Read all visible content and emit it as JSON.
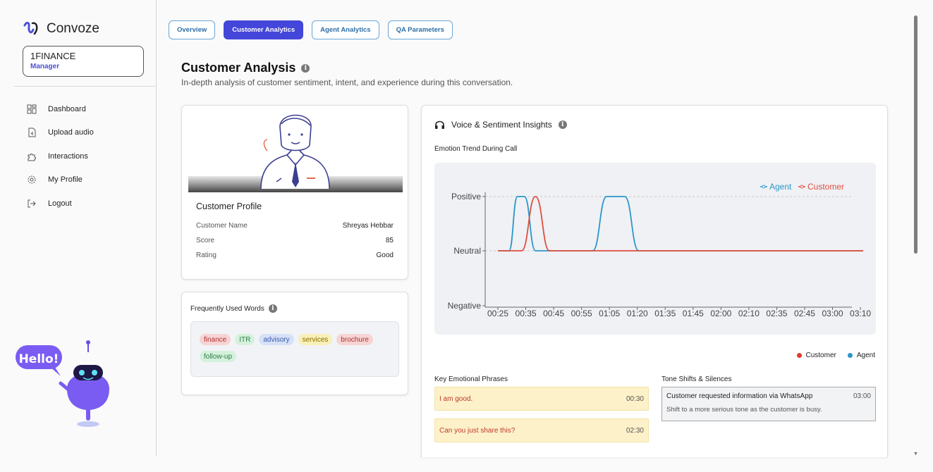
{
  "brand": {
    "name": "Convoze",
    "color": "#4c52d6"
  },
  "org": {
    "name": "1FINANCE",
    "role": "Manager"
  },
  "nav": [
    {
      "label": "Dashboard",
      "icon": "dashboard-icon"
    },
    {
      "label": "Upload audio",
      "icon": "upload-file-icon"
    },
    {
      "label": "Interactions",
      "icon": "puzzle-icon"
    },
    {
      "label": "My Profile",
      "icon": "gear-icon"
    },
    {
      "label": "Logout",
      "icon": "logout-icon"
    }
  ],
  "bot": {
    "greeting": "Hello!"
  },
  "tabs": [
    {
      "label": "Overview",
      "active": false
    },
    {
      "label": "Customer Analytics",
      "active": true
    },
    {
      "label": "Agent Analytics",
      "active": false
    },
    {
      "label": "QA Parameters",
      "active": false
    }
  ],
  "page": {
    "title": "Customer Analysis",
    "subtitle": "In-depth analysis of customer sentiment, intent, and experience during this conversation."
  },
  "profile": {
    "title": "Customer Profile",
    "rows": [
      {
        "label": "Customer Name",
        "value": "Shreyas Hebbar"
      },
      {
        "label": "Score",
        "value": "85"
      },
      {
        "label": "Rating",
        "value": "Good"
      }
    ]
  },
  "words": {
    "title": "Frequently Used Words",
    "chips": [
      {
        "text": "finance",
        "bg": "#f7d4d4",
        "fg": "#b03030"
      },
      {
        "text": "ITR",
        "bg": "#d4f1dc",
        "fg": "#2f7d46"
      },
      {
        "text": "advisory",
        "bg": "#d6e0f7",
        "fg": "#3a5ba8"
      },
      {
        "text": "services",
        "bg": "#f8f0b8",
        "fg": "#8a6d00"
      },
      {
        "text": "brochure",
        "bg": "#f7d4d4",
        "fg": "#b03030"
      },
      {
        "text": "follow-up",
        "bg": "#d4f1dc",
        "fg": "#2f7d46"
      }
    ]
  },
  "voice": {
    "title": "Voice & Sentiment Insights",
    "emotion_label": "Emotion Trend During Call",
    "legend_bottom": [
      "Customer",
      "Agent"
    ],
    "key_phrases_title": "Key Emotional Phrases",
    "phrases": [
      {
        "text": "I am good.",
        "time": "00:30"
      },
      {
        "text": "Can you just share this?",
        "time": "02:30"
      }
    ],
    "tone_title": "Tone Shifts & Silences",
    "tone": {
      "text": "Customer requested information via WhatsApp",
      "time": "03:00",
      "desc": "Shift to a more serious tone as the customer is busy."
    }
  },
  "chart_data": {
    "type": "line",
    "title": "",
    "x": [
      "00:25",
      "00:35",
      "00:45",
      "00:55",
      "01:05",
      "01:20",
      "01:35",
      "01:45",
      "02:00",
      "02:10",
      "02:35",
      "02:45",
      "03:00",
      "03:10"
    ],
    "y_categories": [
      "Negative",
      "Neutral",
      "Positive"
    ],
    "ylim": [
      -1,
      1
    ],
    "grid": "dashed horizontal",
    "legend": "top-right",
    "series": [
      {
        "name": "Agent",
        "color": "#2a97c9",
        "points": [
          [
            0,
            0
          ],
          [
            0.4,
            0
          ],
          [
            0.7,
            1
          ],
          [
            0.95,
            1
          ],
          [
            1.35,
            0
          ],
          [
            3.4,
            0
          ],
          [
            3.9,
            1
          ],
          [
            4.55,
            1
          ],
          [
            5.05,
            0
          ],
          [
            13.1,
            0
          ]
        ]
      },
      {
        "name": "Customer",
        "color": "#e04e3e",
        "points": [
          [
            0,
            0
          ],
          [
            0.85,
            0
          ],
          [
            1.35,
            1
          ],
          [
            1.85,
            0
          ],
          [
            13.1,
            0
          ]
        ]
      }
    ]
  }
}
